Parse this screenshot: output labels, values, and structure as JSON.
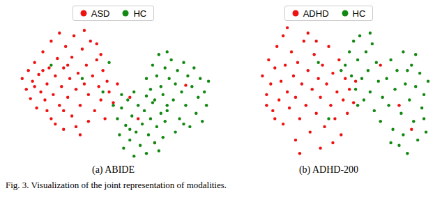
{
  "caption": "Fig. 3. Visualization of the joint representation of modalities.",
  "chart_data": [
    {
      "type": "scatter",
      "title": "(a) ABIDE",
      "xlim": [
        0,
        100
      ],
      "ylim": [
        0,
        100
      ],
      "tick_labels": false,
      "grid": false,
      "legend": "top",
      "series": [
        {
          "name": "ASD",
          "color": "#ee1111",
          "marker": "circle",
          "values": [
            [
              6,
              60
            ],
            [
              8,
              52
            ],
            [
              9,
              66
            ],
            [
              10,
              45
            ],
            [
              11,
              58
            ],
            [
              12,
              72
            ],
            [
              13,
              38
            ],
            [
              14,
              63
            ],
            [
              15,
              50
            ],
            [
              16,
              80
            ],
            [
              17,
              44
            ],
            [
              18,
              56
            ],
            [
              19,
              68
            ],
            [
              20,
              30
            ],
            [
              20,
              88
            ],
            [
              21,
              48
            ],
            [
              22,
              62
            ],
            [
              23,
              75
            ],
            [
              24,
              40
            ],
            [
              24,
              94
            ],
            [
              25,
              54
            ],
            [
              26,
              22
            ],
            [
              26,
              68
            ],
            [
              27,
              84
            ],
            [
              28,
              46
            ],
            [
              29,
              60
            ],
            [
              30,
              32
            ],
            [
              30,
              76
            ],
            [
              31,
              92
            ],
            [
              32,
              52
            ],
            [
              33,
              64
            ],
            [
              34,
              18
            ],
            [
              34,
              40
            ],
            [
              35,
              82
            ],
            [
              36,
              56
            ],
            [
              37,
              70
            ],
            [
              38,
              28
            ],
            [
              38,
              48
            ],
            [
              39,
              88
            ],
            [
              40,
              62
            ],
            [
              41,
              36
            ],
            [
              42,
              74
            ],
            [
              43,
              54
            ],
            [
              44,
              44
            ],
            [
              45,
              66
            ],
            [
              46,
              30
            ],
            [
              47,
              58
            ],
            [
              48,
              50
            ],
            [
              50,
              42
            ],
            [
              52,
              56
            ],
            [
              12,
              54
            ],
            [
              18,
              36
            ],
            [
              28,
              70
            ],
            [
              36,
              96
            ],
            [
              42,
              86
            ],
            [
              22,
              26
            ],
            [
              32,
              24
            ],
            [
              16,
              66
            ],
            [
              44,
              78
            ],
            [
              26,
              36
            ],
            [
              62,
              30
            ],
            [
              85,
              55
            ],
            [
              70,
              12
            ],
            [
              58,
              46
            ]
          ]
        },
        {
          "name": "HC",
          "color": "#118811",
          "marker": "circle",
          "values": [
            [
              50,
              40
            ],
            [
              52,
              30
            ],
            [
              53,
              18
            ],
            [
              54,
              38
            ],
            [
              55,
              8
            ],
            [
              56,
              25
            ],
            [
              57,
              44
            ],
            [
              58,
              14
            ],
            [
              59,
              32
            ],
            [
              60,
              2
            ],
            [
              61,
              20
            ],
            [
              62,
              40
            ],
            [
              63,
              10
            ],
            [
              64,
              26
            ],
            [
              65,
              36
            ],
            [
              66,
              4
            ],
            [
              67,
              18
            ],
            [
              68,
              30
            ],
            [
              69,
              42
            ],
            [
              70,
              12
            ],
            [
              71,
              24
            ],
            [
              72,
              6
            ],
            [
              73,
              34
            ],
            [
              74,
              16
            ],
            [
              75,
              28
            ],
            [
              76,
              40
            ],
            [
              54,
              48
            ],
            [
              60,
              50
            ],
            [
              66,
              47
            ],
            [
              58,
              22
            ],
            [
              66,
              60
            ],
            [
              68,
              52
            ],
            [
              69,
              70
            ],
            [
              70,
              44
            ],
            [
              71,
              62
            ],
            [
              72,
              78
            ],
            [
              73,
              54
            ],
            [
              74,
              48
            ],
            [
              75,
              68
            ],
            [
              76,
              36
            ],
            [
              77,
              60
            ],
            [
              78,
              74
            ],
            [
              79,
              44
            ],
            [
              80,
              56
            ],
            [
              81,
              66
            ],
            [
              82,
              30
            ],
            [
              83,
              50
            ],
            [
              84,
              72
            ],
            [
              85,
              40
            ],
            [
              86,
              62
            ],
            [
              87,
              24
            ],
            [
              88,
              54
            ],
            [
              89,
              68
            ],
            [
              90,
              34
            ],
            [
              91,
              46
            ],
            [
              92,
              60
            ],
            [
              93,
              28
            ],
            [
              94,
              50
            ],
            [
              95,
              40
            ],
            [
              96,
              58
            ],
            [
              80,
              20
            ],
            [
              84,
              26
            ],
            [
              76,
              80
            ],
            [
              20,
              70
            ],
            [
              35,
              60
            ],
            [
              48,
              72
            ],
            [
              45,
              50
            ]
          ]
        }
      ]
    },
    {
      "type": "scatter",
      "title": "(b) ADHD-200",
      "xlim": [
        0,
        100
      ],
      "ylim": [
        0,
        100
      ],
      "tick_labels": false,
      "grid": false,
      "legend": "top",
      "series": [
        {
          "name": "ADHD",
          "color": "#ee1111",
          "marker": "circle",
          "values": [
            [
              18,
              62
            ],
            [
              20,
              48
            ],
            [
              21,
              74
            ],
            [
              22,
              56
            ],
            [
              23,
              36
            ],
            [
              24,
              68
            ],
            [
              25,
              84
            ],
            [
              26,
              44
            ],
            [
              27,
              58
            ],
            [
              28,
              26
            ],
            [
              28,
              92
            ],
            [
              29,
              70
            ],
            [
              30,
              50
            ],
            [
              31,
              38
            ],
            [
              32,
              80
            ],
            [
              33,
              62
            ],
            [
              34,
              14
            ],
            [
              34,
              46
            ],
            [
              35,
              72
            ],
            [
              36,
              30
            ],
            [
              37,
              56
            ],
            [
              38,
              88
            ],
            [
              39,
              40
            ],
            [
              40,
              66
            ],
            [
              41,
              20
            ],
            [
              42,
              52
            ],
            [
              43,
              78
            ],
            [
              44,
              34
            ],
            [
              45,
              60
            ],
            [
              46,
              8
            ],
            [
              46,
              46
            ],
            [
              47,
              70
            ],
            [
              48,
              24
            ],
            [
              49,
              56
            ],
            [
              50,
              84
            ],
            [
              51,
              40
            ],
            [
              52,
              64
            ],
            [
              53,
              30
            ],
            [
              54,
              50
            ],
            [
              55,
              74
            ],
            [
              56,
              18
            ],
            [
              57,
              44
            ],
            [
              58,
              60
            ],
            [
              59,
              34
            ],
            [
              60,
              52
            ],
            [
              62,
              42
            ],
            [
              63,
              58
            ],
            [
              30,
              98
            ],
            [
              40,
              94
            ],
            [
              24,
              30
            ],
            [
              36,
              4
            ],
            [
              52,
              12
            ],
            [
              44,
              88
            ],
            [
              20,
              40
            ],
            [
              75,
              70
            ],
            [
              84,
              40
            ],
            [
              90,
              22
            ]
          ]
        },
        {
          "name": "HC",
          "color": "#118811",
          "marker": "circle",
          "values": [
            [
              58,
              70
            ],
            [
              60,
              80
            ],
            [
              61,
              62
            ],
            [
              62,
              88
            ],
            [
              63,
              52
            ],
            [
              64,
              74
            ],
            [
              65,
              92
            ],
            [
              66,
              60
            ],
            [
              67,
              44
            ],
            [
              68,
              80
            ],
            [
              69,
              66
            ],
            [
              70,
              50
            ],
            [
              71,
              86
            ],
            [
              72,
              36
            ],
            [
              73,
              72
            ],
            [
              74,
              58
            ],
            [
              75,
              28
            ],
            [
              76,
              46
            ],
            [
              64,
              40
            ],
            [
              70,
              94
            ],
            [
              78,
              60
            ],
            [
              79,
              40
            ],
            [
              80,
              74
            ],
            [
              81,
              22
            ],
            [
              82,
              52
            ],
            [
              83,
              66
            ],
            [
              84,
              10
            ],
            [
              85,
              34
            ],
            [
              86,
              80
            ],
            [
              87,
              56
            ],
            [
              88,
              4
            ],
            [
              89,
              44
            ],
            [
              90,
              70
            ],
            [
              91,
              28
            ],
            [
              92,
              54
            ],
            [
              93,
              14
            ],
            [
              94,
              64
            ],
            [
              95,
              38
            ],
            [
              96,
              48
            ],
            [
              97,
              20
            ],
            [
              98,
              58
            ],
            [
              80,
              12
            ],
            [
              86,
              18
            ],
            [
              92,
              78
            ],
            [
              96,
              30
            ],
            [
              88,
              66
            ],
            [
              56,
              66
            ],
            [
              50,
              30
            ],
            [
              45,
              72
            ]
          ]
        }
      ]
    }
  ]
}
